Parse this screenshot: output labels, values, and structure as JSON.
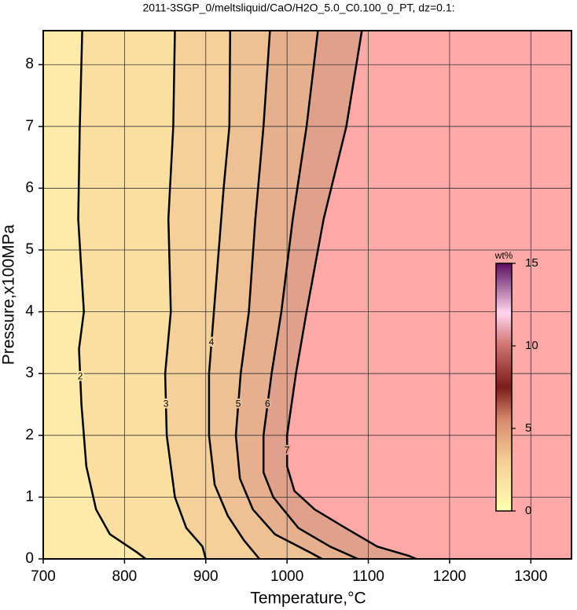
{
  "chart_data": {
    "type": "contour",
    "title": "2011-3SGP_0/meltsliquid/CaO/H2O_5.0_C0.100_0_PT, dz=0.1:",
    "x_label": "Temperature,°C",
    "y_label": "Pressure,x100MPa",
    "xlim": [
      700,
      1350
    ],
    "ylim": [
      0,
      8.55
    ],
    "xticks": [
      700,
      800,
      900,
      1000,
      1100,
      1200,
      1300
    ],
    "yticks": [
      0,
      1,
      2,
      3,
      4,
      5,
      6,
      7,
      8
    ],
    "grid": true,
    "contours": [
      {
        "level": 2,
        "y": [
          8.55,
          7,
          5.5,
          4,
          3.4,
          2.5,
          1.5,
          0.8,
          0.4,
          0.1,
          0
        ],
        "x": [
          748,
          745,
          743,
          750,
          744,
          747,
          753,
          765,
          782,
          816,
          826
        ]
      },
      {
        "level": 3,
        "y": [
          8.55,
          7,
          5.5,
          4,
          3,
          2,
          1,
          0.5,
          0.2,
          0
        ],
        "x": [
          862,
          860,
          854,
          857,
          850,
          852,
          862,
          876,
          896,
          900
        ]
      },
      {
        "level": 4,
        "y": [
          8.55,
          7,
          6,
          5,
          4,
          3,
          2,
          1.2,
          0.7,
          0.3,
          0
        ],
        "x": [
          930,
          929,
          922,
          916,
          910,
          904,
          904,
          911,
          927,
          947,
          966
        ]
      },
      {
        "level": 5,
        "y": [
          8.55,
          7,
          5.5,
          4,
          3,
          2,
          1.3,
          0.8,
          0.4,
          0.1,
          0
        ],
        "x": [
          979,
          971,
          961,
          953,
          943,
          937,
          942,
          958,
          985,
          1029,
          1043
        ]
      },
      {
        "level": 6,
        "y": [
          8.55,
          7,
          5.5,
          4,
          3,
          2,
          1.4,
          1,
          0.5,
          0.2,
          0
        ],
        "x": [
          1038,
          1024,
          1007,
          993,
          981,
          971,
          971,
          983,
          1014,
          1053,
          1087
        ]
      },
      {
        "level": 7,
        "y": [
          8.55,
          7,
          5.5,
          4,
          3,
          2,
          1.5,
          1.1,
          0.8,
          0.5,
          0.2,
          0.05,
          0
        ],
        "x": [
          1092,
          1073,
          1045,
          1024,
          1011,
          1000,
          1000,
          1009,
          1034,
          1072,
          1111,
          1150,
          1159
        ]
      }
    ],
    "band_colors": [
      "#feeaaa",
      "#fadfa3",
      "#f4d09b",
      "#edc194",
      "#e6b08e",
      "#dfa08c",
      "#ffa8a8"
    ],
    "colorbar": {
      "label": "wt%",
      "clim": [
        0,
        15
      ],
      "ticks": [
        0,
        5,
        10,
        15
      ],
      "colormap": [
        {
          "value": 0,
          "color": "#ffffb0"
        },
        {
          "value": 3,
          "color": "#f5cf95"
        },
        {
          "value": 5.5,
          "color": "#d98a70"
        },
        {
          "value": 7.5,
          "color": "#7a1c1c"
        },
        {
          "value": 10,
          "color": "#d07070"
        },
        {
          "value": 12,
          "color": "#ffd6ec"
        },
        {
          "value": 15,
          "color": "#5a1060"
        }
      ]
    }
  }
}
